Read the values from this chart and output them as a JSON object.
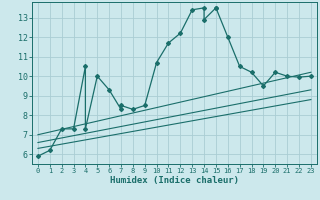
{
  "xlabel": "Humidex (Indice chaleur)",
  "xlim": [
    -0.5,
    23.5
  ],
  "ylim": [
    5.5,
    13.8
  ],
  "xticks": [
    0,
    1,
    2,
    3,
    4,
    5,
    6,
    7,
    8,
    9,
    10,
    11,
    12,
    13,
    14,
    15,
    16,
    17,
    18,
    19,
    20,
    21,
    22,
    23
  ],
  "yticks": [
    6,
    7,
    8,
    9,
    10,
    11,
    12,
    13
  ],
  "bg_color": "#cce8ec",
  "grid_color": "#aacdd4",
  "line_color": "#1a6e6a",
  "main_series_x": [
    0,
    1,
    2,
    3,
    4,
    4,
    5,
    6,
    7,
    7,
    8,
    9,
    10,
    11,
    12,
    13,
    14,
    14,
    15,
    15,
    16,
    17,
    18,
    19,
    20,
    21,
    22,
    23
  ],
  "main_series_y": [
    5.9,
    6.2,
    7.3,
    7.3,
    10.5,
    7.3,
    10.0,
    9.3,
    8.3,
    8.5,
    8.3,
    8.5,
    10.7,
    11.7,
    12.2,
    13.4,
    13.5,
    12.9,
    13.5,
    13.5,
    12.0,
    10.5,
    10.2,
    9.5,
    10.2,
    10.0,
    9.95,
    10.0
  ],
  "line1_x": [
    0,
    23
  ],
  "line1_y": [
    6.3,
    8.8
  ],
  "line2_x": [
    0,
    23
  ],
  "line2_y": [
    6.6,
    9.3
  ],
  "line3_x": [
    0,
    23
  ],
  "line3_y": [
    7.0,
    10.2
  ]
}
